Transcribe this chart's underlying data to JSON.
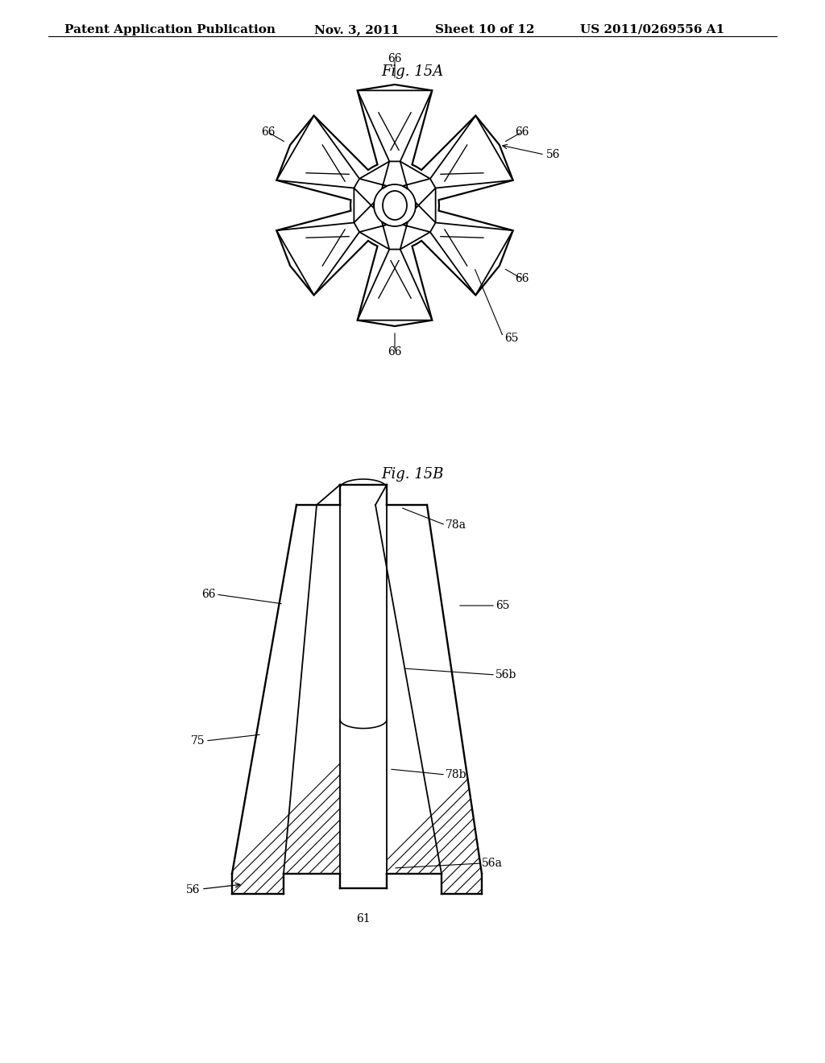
{
  "background_color": "#ffffff",
  "header_text": "Patent Application Publication",
  "header_date": "Nov. 3, 2011",
  "header_sheet": "Sheet 10 of 12",
  "header_patent": "US 2011/0269556 A1",
  "fig15a_title": "Fig. 15A",
  "fig15b_title": "Fig. 15B",
  "line_color": "#000000",
  "font_size_header": 11,
  "font_size_title": 13,
  "font_size_label": 10
}
